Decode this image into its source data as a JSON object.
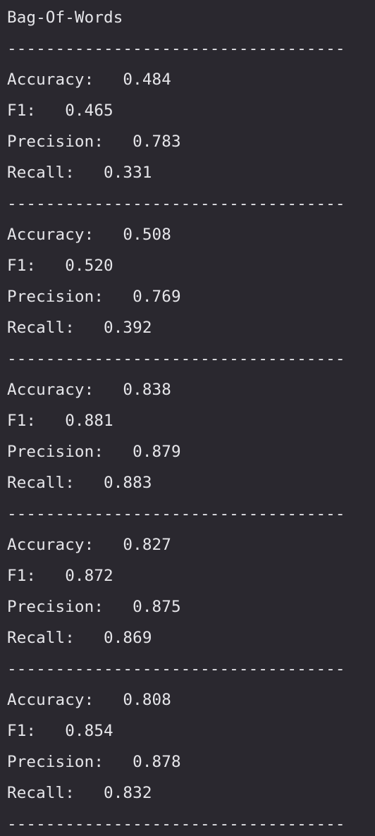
{
  "console": {
    "lines": [
      "Bag-Of-Words",
      "-----------------------------------",
      "Accuracy:   0.484",
      "F1:   0.465",
      "Precision:   0.783",
      "Recall:   0.331",
      "-----------------------------------",
      "Accuracy:   0.508",
      "F1:   0.520",
      "Precision:   0.769",
      "Recall:   0.392",
      "-----------------------------------",
      "Accuracy:   0.838",
      "F1:   0.881",
      "Precision:   0.879",
      "Recall:   0.883",
      "-----------------------------------",
      "Accuracy:   0.827",
      "F1:   0.872",
      "Precision:   0.875",
      "Recall:   0.869",
      "-----------------------------------",
      "Accuracy:   0.808",
      "F1:   0.854",
      "Precision:   0.878",
      "Recall:   0.832",
      "-----------------------------------"
    ]
  }
}
